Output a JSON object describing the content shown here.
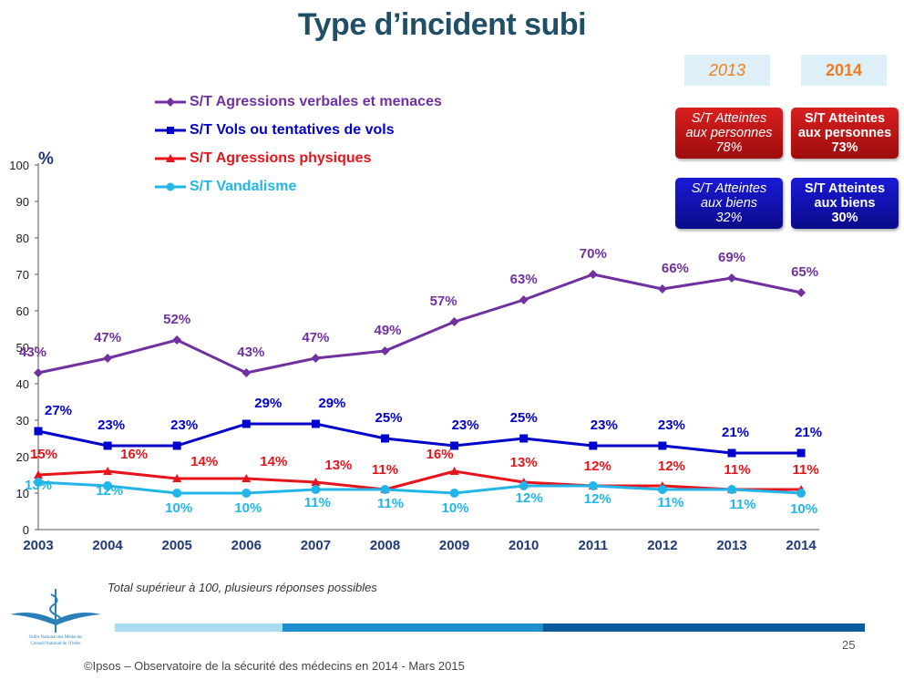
{
  "title": "Type d’incident subi",
  "unit_label": "%",
  "legend": [
    {
      "label": "S/T Agressions verbales et menaces",
      "color": "#7030a0",
      "marker": "diamond"
    },
    {
      "label": "S/T Vols ou tentatives de vols",
      "color": "#0000cc",
      "marker": "square"
    },
    {
      "label": "S/T Agressions physiques",
      "color": "#e8141b",
      "marker": "triangle"
    },
    {
      "label": "S/T Vandalisme",
      "color": "#22b5e8",
      "marker": "circle"
    }
  ],
  "year_tags": {
    "y2013": "2013",
    "y2014": "2014"
  },
  "boxes": {
    "persons_2013": {
      "line1": "S/T Atteintes",
      "line2": "aux personnes",
      "line3": "78%"
    },
    "persons_2014": {
      "line1": "S/T Atteintes",
      "line2": "aux personnes",
      "line3": "73%"
    },
    "goods_2013": {
      "line1": "S/T Atteintes",
      "line2": "aux biens",
      "line3": "32%"
    },
    "goods_2014": {
      "line1": "S/T Atteintes",
      "line2": "aux biens",
      "line3": "30%"
    }
  },
  "note": "Total supérieur à 100, plusieurs réponses possibles",
  "page_number": "25",
  "footer": "©Ipsos – Observatoire de la sécurité des médecins en 2014 - Mars 2015",
  "logo_text": {
    "line1": "Ordre National des Médecins",
    "line2": "Conseil National de l'Ordre"
  },
  "chart_data": {
    "type": "line",
    "title": "Type d’incident subi",
    "ylabel": "%",
    "xlabel": "",
    "ylim": [
      0,
      100
    ],
    "yticks": [
      0,
      10,
      20,
      30,
      40,
      50,
      60,
      70,
      80,
      90,
      100
    ],
    "x": [
      "2003",
      "2004",
      "2005",
      "2006",
      "2007",
      "2008",
      "2009",
      "2010",
      "2011",
      "2012",
      "2013",
      "2014"
    ],
    "grid": false,
    "legend_position": "top-left",
    "series": [
      {
        "name": "S/T Agressions verbales et menaces",
        "values": [
          43,
          47,
          52,
          43,
          47,
          49,
          57,
          63,
          70,
          66,
          69,
          65
        ],
        "labels": [
          "43%",
          "47%",
          "52%",
          "43%",
          "47%",
          "49%",
          "57%",
          "63%",
          "70%",
          "66%",
          "69%",
          "65%"
        ]
      },
      {
        "name": "S/T Vols ou tentatives de vols",
        "values": [
          27,
          23,
          23,
          29,
          29,
          25,
          23,
          25,
          23,
          23,
          21,
          21
        ],
        "labels": [
          "27%",
          "23%",
          "23%",
          "29%",
          "29%",
          "25%",
          "23%",
          "25%",
          "23%",
          "23%",
          "21%",
          "21%"
        ]
      },
      {
        "name": "S/T Agressions physiques",
        "values": [
          15,
          16,
          14,
          14,
          13,
          11,
          16,
          13,
          12,
          12,
          11,
          11
        ],
        "labels": [
          "15%",
          "16%",
          "14%",
          "14%",
          "13%",
          "11%",
          "16%",
          "13%",
          "12%",
          "12%",
          "11%",
          "11%"
        ]
      },
      {
        "name": "S/T Vandalisme",
        "values": [
          13,
          12,
          10,
          10,
          11,
          11,
          10,
          12,
          12,
          11,
          11,
          10
        ],
        "labels": [
          "13%",
          "12%",
          "10%",
          "10%",
          "11%",
          "11%",
          "10%",
          "12%",
          "12%",
          "11%",
          "11%",
          "10%"
        ]
      }
    ]
  }
}
